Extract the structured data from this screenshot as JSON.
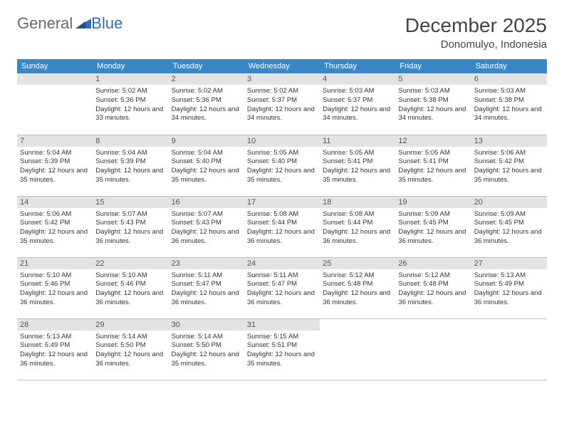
{
  "logo": {
    "general": "General",
    "blue": "Blue"
  },
  "title": "December 2025",
  "location": "Donomulyo, Indonesia",
  "header_bg": "#3a87c8",
  "days_of_week": [
    "Sunday",
    "Monday",
    "Tuesday",
    "Wednesday",
    "Thursday",
    "Friday",
    "Saturday"
  ],
  "weeks": [
    [
      null,
      {
        "n": "1",
        "sr": "5:02 AM",
        "ss": "5:36 PM",
        "dl": "12 hours and 33 minutes."
      },
      {
        "n": "2",
        "sr": "5:02 AM",
        "ss": "5:36 PM",
        "dl": "12 hours and 34 minutes."
      },
      {
        "n": "3",
        "sr": "5:02 AM",
        "ss": "5:37 PM",
        "dl": "12 hours and 34 minutes."
      },
      {
        "n": "4",
        "sr": "5:03 AM",
        "ss": "5:37 PM",
        "dl": "12 hours and 34 minutes."
      },
      {
        "n": "5",
        "sr": "5:03 AM",
        "ss": "5:38 PM",
        "dl": "12 hours and 34 minutes."
      },
      {
        "n": "6",
        "sr": "5:03 AM",
        "ss": "5:38 PM",
        "dl": "12 hours and 34 minutes."
      }
    ],
    [
      {
        "n": "7",
        "sr": "5:04 AM",
        "ss": "5:39 PM",
        "dl": "12 hours and 35 minutes."
      },
      {
        "n": "8",
        "sr": "5:04 AM",
        "ss": "5:39 PM",
        "dl": "12 hours and 35 minutes."
      },
      {
        "n": "9",
        "sr": "5:04 AM",
        "ss": "5:40 PM",
        "dl": "12 hours and 35 minutes."
      },
      {
        "n": "10",
        "sr": "5:05 AM",
        "ss": "5:40 PM",
        "dl": "12 hours and 35 minutes."
      },
      {
        "n": "11",
        "sr": "5:05 AM",
        "ss": "5:41 PM",
        "dl": "12 hours and 35 minutes."
      },
      {
        "n": "12",
        "sr": "5:05 AM",
        "ss": "5:41 PM",
        "dl": "12 hours and 35 minutes."
      },
      {
        "n": "13",
        "sr": "5:06 AM",
        "ss": "5:42 PM",
        "dl": "12 hours and 35 minutes."
      }
    ],
    [
      {
        "n": "14",
        "sr": "5:06 AM",
        "ss": "5:42 PM",
        "dl": "12 hours and 35 minutes."
      },
      {
        "n": "15",
        "sr": "5:07 AM",
        "ss": "5:43 PM",
        "dl": "12 hours and 36 minutes."
      },
      {
        "n": "16",
        "sr": "5:07 AM",
        "ss": "5:43 PM",
        "dl": "12 hours and 36 minutes."
      },
      {
        "n": "17",
        "sr": "5:08 AM",
        "ss": "5:44 PM",
        "dl": "12 hours and 36 minutes."
      },
      {
        "n": "18",
        "sr": "5:08 AM",
        "ss": "5:44 PM",
        "dl": "12 hours and 36 minutes."
      },
      {
        "n": "19",
        "sr": "5:09 AM",
        "ss": "5:45 PM",
        "dl": "12 hours and 36 minutes."
      },
      {
        "n": "20",
        "sr": "5:09 AM",
        "ss": "5:45 PM",
        "dl": "12 hours and 36 minutes."
      }
    ],
    [
      {
        "n": "21",
        "sr": "5:10 AM",
        "ss": "5:46 PM",
        "dl": "12 hours and 36 minutes."
      },
      {
        "n": "22",
        "sr": "5:10 AM",
        "ss": "5:46 PM",
        "dl": "12 hours and 36 minutes."
      },
      {
        "n": "23",
        "sr": "5:11 AM",
        "ss": "5:47 PM",
        "dl": "12 hours and 36 minutes."
      },
      {
        "n": "24",
        "sr": "5:11 AM",
        "ss": "5:47 PM",
        "dl": "12 hours and 36 minutes."
      },
      {
        "n": "25",
        "sr": "5:12 AM",
        "ss": "5:48 PM",
        "dl": "12 hours and 36 minutes."
      },
      {
        "n": "26",
        "sr": "5:12 AM",
        "ss": "5:48 PM",
        "dl": "12 hours and 36 minutes."
      },
      {
        "n": "27",
        "sr": "5:13 AM",
        "ss": "5:49 PM",
        "dl": "12 hours and 36 minutes."
      }
    ],
    [
      {
        "n": "28",
        "sr": "5:13 AM",
        "ss": "5:49 PM",
        "dl": "12 hours and 36 minutes."
      },
      {
        "n": "29",
        "sr": "5:14 AM",
        "ss": "5:50 PM",
        "dl": "12 hours and 36 minutes."
      },
      {
        "n": "30",
        "sr": "5:14 AM",
        "ss": "5:50 PM",
        "dl": "12 hours and 35 minutes."
      },
      {
        "n": "31",
        "sr": "5:15 AM",
        "ss": "5:51 PM",
        "dl": "12 hours and 35 minutes."
      },
      null,
      null,
      null
    ]
  ],
  "labels": {
    "sunrise": "Sunrise:",
    "sunset": "Sunset:",
    "daylight": "Daylight:"
  }
}
